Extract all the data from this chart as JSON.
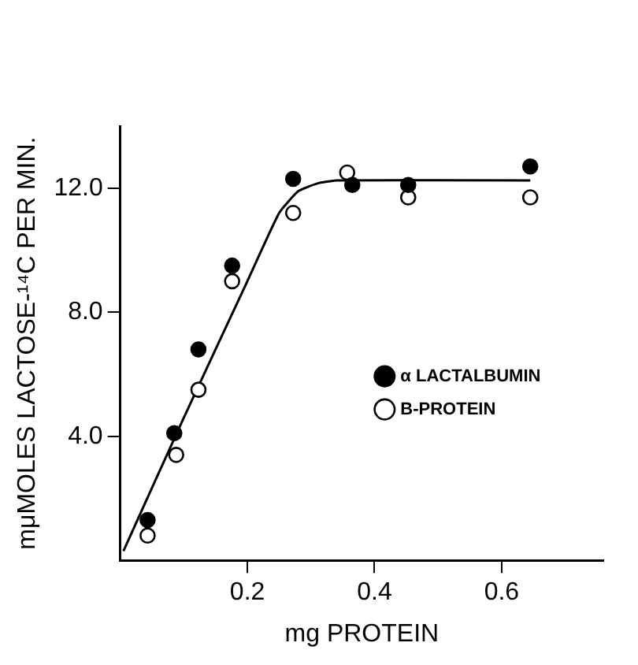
{
  "chart_data": {
    "type": "scatter",
    "xlabel": "mg PROTEIN",
    "ylabel": "mμMOLES LACTOSE-¹⁴C PER MIN.",
    "xlim": [
      0,
      0.76
    ],
    "xticks": [
      0.2,
      0.4,
      0.6
    ],
    "ylim": [
      0,
      14
    ],
    "yticks": [
      {
        "value": 4,
        "label": "4.0"
      },
      {
        "value": 8,
        "label": "8.0"
      },
      {
        "value": 12,
        "label": "12.0"
      }
    ],
    "grid": false,
    "legend": "right",
    "marker": "circle",
    "series": [
      {
        "name": "α LACTALBUMIN",
        "color": "#000000",
        "x": [
          0.043,
          0.085,
          0.123,
          0.176,
          0.272,
          0.365,
          0.453,
          0.645
        ],
        "values": [
          1.3,
          4.1,
          6.8,
          9.5,
          12.3,
          12.1,
          12.1,
          12.7
        ]
      },
      {
        "name": "B-PROTEIN",
        "color": "#ffffff",
        "x": [
          0.043,
          0.088,
          0.123,
          0.176,
          0.272,
          0.357,
          0.453,
          0.645
        ],
        "values": [
          0.8,
          3.4,
          5.5,
          9.0,
          11.2,
          12.5,
          11.7,
          11.7
        ]
      },
      {
        "type": "line",
        "color": "#000000",
        "marker": "none",
        "x": [
          0.005,
          0.1,
          0.2,
          0.25,
          0.28,
          0.31,
          0.34,
          0.645
        ],
        "values": [
          0.3,
          4.6,
          9.0,
          11.2,
          11.9,
          12.15,
          12.25,
          12.25
        ]
      }
    ]
  }
}
